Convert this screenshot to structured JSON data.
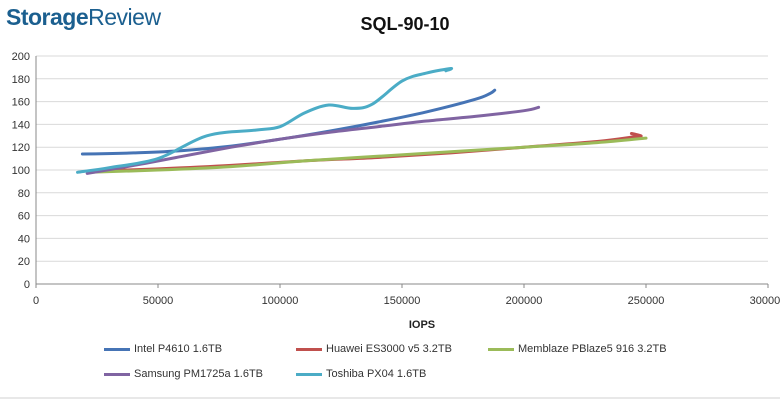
{
  "brand": {
    "name_part1": "Storage",
    "name_part2": "Review"
  },
  "chart_data": {
    "type": "line",
    "title": "SQL-90-10",
    "xlabel": "IOPS",
    "ylabel": "",
    "xlim": [
      0,
      300000
    ],
    "ylim": [
      0,
      200
    ],
    "xticks": [
      0,
      50000,
      100000,
      150000,
      200000,
      250000,
      300000
    ],
    "xtick_labels": [
      "0",
      "50000",
      "100000",
      "150000",
      "200000",
      "250000",
      "300000"
    ],
    "yticks": [
      0,
      20,
      40,
      60,
      80,
      100,
      120,
      140,
      160,
      180,
      200
    ],
    "ytick_labels": [
      "0",
      "20",
      "40",
      "60",
      "80",
      "100",
      "120",
      "140",
      "160",
      "180",
      "200"
    ],
    "grid": "horizontal",
    "legend_position": "bottom",
    "series": [
      {
        "name": "Intel P4610 1.6TB",
        "color": "#4674b5",
        "x": [
          19000,
          40000,
          60000,
          80000,
          100000,
          120000,
          140000,
          160000,
          180000,
          186000,
          188000
        ],
        "y": [
          114,
          115,
          117,
          121,
          127,
          134,
          142,
          151,
          162,
          167,
          170
        ]
      },
      {
        "name": "Huawei ES3000 v5 3.2TB",
        "color": "#c0504d",
        "x": [
          22000,
          50000,
          80000,
          110000,
          140000,
          170000,
          200000,
          230000,
          245000,
          248000,
          244000
        ],
        "y": [
          99,
          101,
          104,
          108,
          111,
          115,
          120,
          125,
          129,
          130,
          132
        ]
      },
      {
        "name": "Memblaze PBlaze5 916 3.2TB",
        "color": "#9bbb59",
        "x": [
          22000,
          50000,
          80000,
          110000,
          140000,
          170000,
          200000,
          230000,
          250000
        ],
        "y": [
          98,
          100,
          103,
          108,
          112,
          116,
          120,
          124,
          128
        ]
      },
      {
        "name": "Samsung PM1725a 1.6TB",
        "color": "#8064a2",
        "x": [
          21000,
          40000,
          60000,
          80000,
          100000,
          120000,
          140000,
          160000,
          180000,
          200000,
          206000
        ],
        "y": [
          97,
          104,
          112,
          120,
          127,
          133,
          138,
          143,
          147,
          152,
          155
        ]
      },
      {
        "name": "Toshiba PX04 1.6TB",
        "color": "#4bacc6",
        "x": [
          17000,
          30000,
          50000,
          70000,
          90000,
          100000,
          110000,
          120000,
          130000,
          138000,
          150000,
          160000,
          170000,
          168000
        ],
        "y": [
          98,
          102,
          110,
          130,
          135,
          138,
          150,
          157,
          154,
          158,
          178,
          185,
          189,
          187
        ]
      }
    ]
  }
}
